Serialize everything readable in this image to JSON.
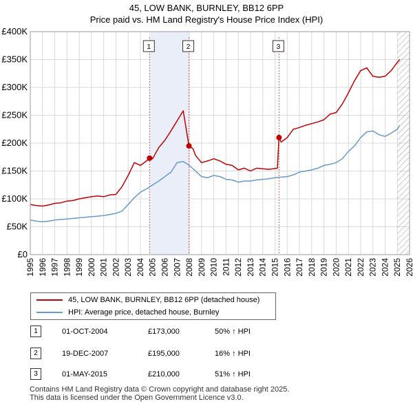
{
  "title_line1": "45, LOW BANK, BURNLEY, BB12 6PP",
  "title_line2": "Price paid vs. HM Land Registry's House Price Index (HPI)",
  "colors": {
    "price": "#c00000",
    "hpi": "#6699cc",
    "shade": "#e9eef8",
    "vline": "#e05555",
    "hatch": "#999999"
  },
  "legend": {
    "price_label": "45, LOW BANK, BURNLEY, BB12 6PP (detached house)",
    "hpi_label": "HPI: Average price, detached house, Burnley"
  },
  "transactions": [
    {
      "num": "1",
      "date": "01-OCT-2004",
      "price": "£173,000",
      "hpi": "50% ↑ HPI"
    },
    {
      "num": "2",
      "date": "19-DEC-2007",
      "price": "£195,000",
      "hpi": "16% ↑ HPI"
    },
    {
      "num": "3",
      "date": "01-MAY-2015",
      "price": "£210,000",
      "hpi": "51% ↑ HPI"
    }
  ],
  "footer_line1": "Contains HM Land Registry data © Crown copyright and database right 2025.",
  "footer_line2": "This data is licensed under the Open Government Licence v3.0.",
  "chart_data": {
    "type": "line",
    "title": "Price paid vs. HM Land Registry's House Price Index (HPI)",
    "xlim": [
      1995,
      2026
    ],
    "ylim": [
      0,
      400000
    ],
    "y_ticks": [
      0,
      50000,
      100000,
      150000,
      200000,
      250000,
      300000,
      350000,
      400000
    ],
    "y_tick_labels": [
      "£0",
      "£50K",
      "£100K",
      "£150K",
      "£200K",
      "£250K",
      "£300K",
      "£350K",
      "£400K"
    ],
    "x_ticks": [
      1995,
      1996,
      1997,
      1998,
      1999,
      2000,
      2001,
      2002,
      2003,
      2004,
      2005,
      2006,
      2007,
      2008,
      2009,
      2010,
      2011,
      2012,
      2013,
      2014,
      2015,
      2016,
      2017,
      2018,
      2019,
      2020,
      2021,
      2022,
      2023,
      2024,
      2025,
      2026
    ],
    "shaded_ranges": [
      [
        2004.75,
        2007.97
      ]
    ],
    "future_hatch_from": 2025.0,
    "sale_markers": [
      {
        "label": "1",
        "x": 2004.75,
        "y": 173000
      },
      {
        "label": "2",
        "x": 2007.97,
        "y": 195000
      },
      {
        "label": "3",
        "x": 2015.33,
        "y": 210000
      }
    ],
    "series": [
      {
        "name": "45, LOW BANK, BURNLEY, BB12 6PP (detached house)",
        "x": [
          1995,
          1995.5,
          1996,
          1996.5,
          1997,
          1997.5,
          1998,
          1998.5,
          1999,
          1999.5,
          2000,
          2000.5,
          2001,
          2001.5,
          2002,
          2002.5,
          2003,
          2003.5,
          2004,
          2004.5,
          2004.75,
          2005,
          2005.5,
          2006,
          2006.5,
          2007,
          2007.5,
          2007.97,
          2008.3,
          2008.5,
          2009,
          2009.5,
          2010,
          2010.5,
          2011,
          2011.5,
          2012,
          2012.5,
          2013,
          2013.5,
          2014,
          2014.5,
          2015.2,
          2015.33,
          2015.5,
          2016,
          2016.5,
          2017,
          2017.5,
          2018,
          2018.5,
          2019,
          2019.5,
          2020,
          2020.5,
          2021,
          2021.5,
          2022,
          2022.5,
          2023,
          2023.5,
          2024,
          2024.5,
          2025,
          2025.2
        ],
        "values": [
          90000,
          88000,
          87000,
          89000,
          92000,
          93000,
          96000,
          97000,
          100000,
          102000,
          104000,
          105000,
          104000,
          107000,
          108000,
          122000,
          142000,
          165000,
          160000,
          168000,
          173000,
          172000,
          192000,
          205000,
          222000,
          240000,
          258000,
          195000,
          190000,
          178000,
          165000,
          168000,
          172000,
          168000,
          162000,
          160000,
          152000,
          155000,
          150000,
          155000,
          154000,
          153000,
          155000,
          210000,
          202000,
          210000,
          225000,
          228000,
          232000,
          235000,
          238000,
          242000,
          252000,
          255000,
          270000,
          290000,
          312000,
          330000,
          335000,
          320000,
          318000,
          320000,
          330000,
          345000,
          350000
        ]
      },
      {
        "name": "HPI: Average price, detached house, Burnley",
        "x": [
          1995,
          1995.5,
          1996,
          1996.5,
          1997,
          1997.5,
          1998,
          1998.5,
          1999,
          1999.5,
          2000,
          2000.5,
          2001,
          2001.5,
          2002,
          2002.5,
          2003,
          2003.5,
          2004,
          2004.5,
          2005,
          2005.5,
          2006,
          2006.5,
          2007,
          2007.5,
          2008,
          2008.5,
          2009,
          2009.5,
          2010,
          2010.5,
          2011,
          2011.5,
          2012,
          2012.5,
          2013,
          2013.5,
          2014,
          2014.5,
          2015,
          2015.5,
          2016,
          2016.5,
          2017,
          2017.5,
          2018,
          2018.5,
          2019,
          2019.5,
          2020,
          2020.5,
          2021,
          2021.5,
          2022,
          2022.5,
          2023,
          2023.5,
          2024,
          2024.5,
          2025,
          2025.2
        ],
        "values": [
          62000,
          60000,
          59000,
          60000,
          62000,
          63000,
          64000,
          65000,
          66000,
          67000,
          68000,
          69000,
          70000,
          72000,
          74000,
          78000,
          90000,
          102000,
          112000,
          118000,
          125000,
          132000,
          140000,
          148000,
          165000,
          167000,
          160000,
          150000,
          140000,
          138000,
          142000,
          140000,
          135000,
          134000,
          130000,
          132000,
          132000,
          134000,
          135000,
          136000,
          138000,
          139000,
          140000,
          143000,
          148000,
          150000,
          152000,
          155000,
          160000,
          162000,
          165000,
          172000,
          185000,
          195000,
          210000,
          220000,
          222000,
          215000,
          212000,
          218000,
          225000,
          232000
        ]
      }
    ]
  }
}
